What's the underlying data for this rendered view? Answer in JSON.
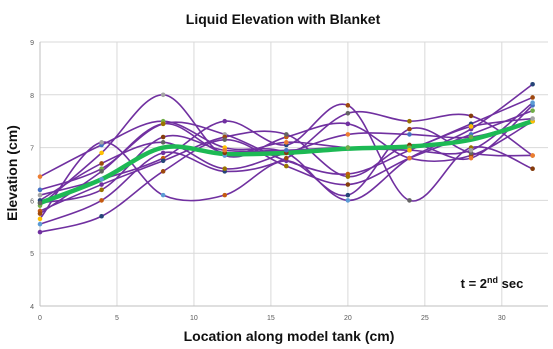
{
  "chart_data": {
    "type": "line",
    "title": "Liquid Elevation with Blanket",
    "xlabel": "Location along model tank (cm)",
    "ylabel": "Elevation (cm)",
    "xlim": [
      0,
      33
    ],
    "ylim": [
      4,
      9
    ],
    "xticks": [
      0,
      5,
      10,
      15,
      20,
      25,
      30
    ],
    "yticks": [
      4,
      5,
      6,
      7,
      8,
      9
    ],
    "grid": true,
    "x": [
      0,
      4,
      8,
      12,
      16,
      20,
      24,
      28,
      32
    ],
    "annotation": {
      "prefix": "t = 2",
      "superscript": "nd",
      "suffix": " sec"
    },
    "colors": {
      "mean_line": "#1db954",
      "series_line": "#7030a0",
      "grid": "#d9d9d9",
      "markers": [
        "#ed7d31",
        "#4472c4",
        "#70ad47",
        "#ffc000",
        "#a5a5a5",
        "#5b9bd5",
        "#c55a11",
        "#7030a0",
        "#264478",
        "#9e480e",
        "#636363",
        "#997300",
        "#843c0c"
      ]
    },
    "mean_series": [
      5.95,
      6.4,
      7.0,
      6.88,
      6.9,
      6.98,
      7.02,
      7.15,
      7.5
    ],
    "series": [
      {
        "values": [
          6.45,
          7.05,
          7.5,
          7.0,
          6.9,
          6.0,
          6.8,
          7.35,
          8.2
        ]
      },
      {
        "values": [
          6.2,
          6.6,
          7.45,
          7.25,
          6.75,
          6.5,
          6.95,
          7.45,
          7.95
        ]
      },
      {
        "values": [
          5.9,
          6.9,
          8.0,
          6.85,
          7.2,
          7.45,
          6.8,
          6.85,
          7.5
        ]
      },
      {
        "values": [
          5.65,
          7.1,
          6.1,
          6.1,
          6.75,
          6.1,
          7.35,
          6.9,
          6.85
        ]
      },
      {
        "values": [
          6.1,
          6.4,
          6.8,
          7.5,
          7.05,
          7.8,
          6.0,
          7.0,
          6.6
        ]
      },
      {
        "values": [
          5.55,
          6.0,
          6.9,
          6.55,
          6.8,
          7.65,
          7.5,
          7.6,
          6.85
        ]
      },
      {
        "values": [
          5.8,
          6.3,
          6.75,
          7.2,
          7.25,
          6.45,
          7.05,
          6.8,
          7.8
        ]
      },
      {
        "values": [
          5.4,
          5.7,
          6.55,
          7.15,
          6.65,
          6.3,
          6.8,
          7.25,
          7.7
        ]
      },
      {
        "values": [
          6.0,
          6.7,
          7.1,
          6.6,
          6.9,
          7.25,
          7.25,
          7.2,
          7.5
        ]
      },
      {
        "values": [
          5.75,
          6.55,
          7.45,
          6.9,
          7.1,
          7.0,
          7.0,
          7.4,
          7.55
        ]
      },
      {
        "values": [
          5.95,
          6.2,
          7.2,
          6.95,
          6.95,
          7.0,
          6.95,
          6.95,
          7.85
        ]
      }
    ]
  }
}
